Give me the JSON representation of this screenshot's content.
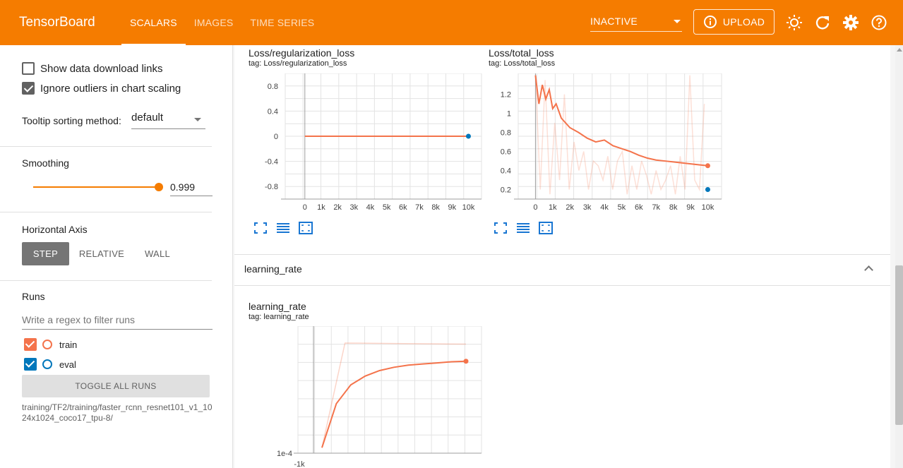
{
  "app": {
    "title": "TensorBoard"
  },
  "nav": {
    "tabs": [
      {
        "label": "SCALARS",
        "active": true
      },
      {
        "label": "IMAGES",
        "active": false
      },
      {
        "label": "TIME SERIES",
        "active": false
      }
    ]
  },
  "header": {
    "status": "INACTIVE",
    "upload_label": "UPLOAD",
    "icons": [
      "info-icon",
      "brightness-icon",
      "refresh-icon",
      "settings-icon",
      "help-icon"
    ]
  },
  "sidebar": {
    "show_download": {
      "label": "Show data download links",
      "checked": false
    },
    "ignore_outliers": {
      "label": "Ignore outliers in chart scaling",
      "checked": true
    },
    "tooltip": {
      "label": "Tooltip sorting method:",
      "value": "default"
    },
    "smoothing": {
      "label": "Smoothing",
      "value": "0.999",
      "fraction": 0.999
    },
    "horizontal_axis": {
      "label": "Horizontal Axis",
      "options": [
        "STEP",
        "RELATIVE",
        "WALL"
      ],
      "selected": "STEP"
    },
    "runs": {
      "label": "Runs",
      "filter_placeholder": "Write a regex to filter runs",
      "items": [
        {
          "name": "train",
          "color": "#f4734b",
          "checked": true
        },
        {
          "name": "eval",
          "color": "#0077bb",
          "checked": true
        }
      ],
      "toggle_label": "TOGGLE ALL RUNS",
      "path": "training/TF2/training/faster_rcnn_resnet101_v1_1024x1024_coco17_tpu-8/"
    }
  },
  "group": {
    "title": "learning_rate"
  },
  "colors": {
    "accent": "#f57c00",
    "train": "#f4734b",
    "eval": "#0077bb"
  },
  "chart_data": [
    {
      "type": "line",
      "title": "Loss/regularization_loss",
      "tag": "tag: Loss/regularization_loss",
      "x_ticks": [
        "0",
        "1k",
        "2k",
        "3k",
        "4k",
        "5k",
        "6k",
        "7k",
        "8k",
        "9k",
        "10k"
      ],
      "y_ticks": [
        "0.8",
        "0.4",
        "0",
        "-0.4",
        "-0.8"
      ],
      "xlim": [
        -1200,
        10800
      ],
      "ylim": [
        -1.0,
        1.0
      ],
      "series": [
        {
          "name": "train",
          "x": [
            0,
            10000
          ],
          "y": [
            0,
            0
          ]
        },
        {
          "name": "eval",
          "x": [
            10000
          ],
          "y": [
            0
          ]
        }
      ]
    },
    {
      "type": "line",
      "title": "Loss/total_loss",
      "tag": "tag: Loss/total_loss",
      "x_ticks": [
        "0",
        "1k",
        "2k",
        "3k",
        "4k",
        "5k",
        "6k",
        "7k",
        "8k",
        "9k",
        "10k"
      ],
      "y_ticks": [
        "1.2",
        "1",
        "0.8",
        "0.6",
        "0.4",
        "0.2"
      ],
      "xlim": [
        -1000,
        10800
      ],
      "ylim": [
        0.1,
        1.42
      ],
      "series": [
        {
          "name": "train",
          "x": [
            0,
            200,
            400,
            600,
            800,
            1000,
            1200,
            1500,
            2000,
            2500,
            3000,
            3500,
            4000,
            4500,
            5000,
            5500,
            6000,
            6500,
            7000,
            7500,
            8000,
            8500,
            9000,
            9500,
            10000
          ],
          "y": [
            1.4,
            1.1,
            1.3,
            1.15,
            1.25,
            1.05,
            1.1,
            0.95,
            0.85,
            0.8,
            0.74,
            0.7,
            0.72,
            0.66,
            0.63,
            0.6,
            0.56,
            0.53,
            0.51,
            0.5,
            0.49,
            0.48,
            0.47,
            0.46,
            0.45
          ]
        },
        {
          "name": "eval",
          "x": [
            10000
          ],
          "y": [
            0.2
          ]
        }
      ]
    },
    {
      "type": "line",
      "title": "learning_rate",
      "tag": "tag: learning_rate",
      "x_ticks": [
        "-1k"
      ],
      "y_ticks": [
        "1e-4"
      ],
      "log_scale": true,
      "series": [
        {
          "name": "train",
          "x": [
            0,
            1000,
            2000,
            3000,
            4000,
            5000,
            6000,
            7000,
            8000,
            9000,
            10000
          ],
          "y": [
            0.05,
            0.45,
            0.62,
            0.7,
            0.75,
            0.78,
            0.8,
            0.81,
            0.82,
            0.83,
            0.835
          ]
        }
      ]
    }
  ]
}
